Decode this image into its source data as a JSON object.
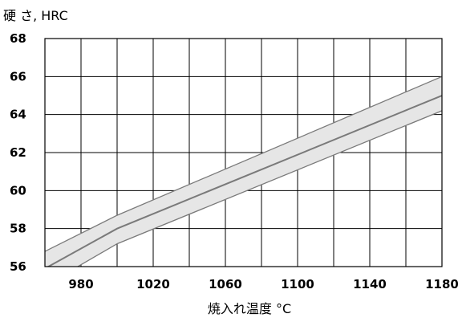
{
  "chart_data": {
    "type": "area",
    "title": "",
    "ylabel": "硬 さ, HRC",
    "xlabel": "焼入れ温度 °C",
    "xlim": [
      960,
      1180
    ],
    "ylim": [
      56,
      68
    ],
    "x_ticks": [
      980,
      1020,
      1060,
      1100,
      1140,
      1180
    ],
    "y_ticks": [
      56,
      58,
      60,
      62,
      64,
      66,
      68
    ],
    "x_tick_labels": [
      "980",
      "1020",
      "1060",
      "1100",
      "1140",
      "1180"
    ],
    "y_tick_labels": [
      "56",
      "58",
      "60",
      "62",
      "64",
      "66",
      "68"
    ],
    "grid": true,
    "series": [
      {
        "role": "upper",
        "x": [
          960,
          1000,
          1180
        ],
        "values": [
          56.8,
          58.7,
          66.0
        ]
      },
      {
        "role": "center",
        "x": [
          960,
          1000,
          1180
        ],
        "values": [
          55.9,
          58.0,
          65.0
        ]
      },
      {
        "role": "lower",
        "x": [
          960,
          1000,
          1180
        ],
        "values": [
          55.0,
          57.2,
          64.2
        ]
      }
    ],
    "colors": {
      "band_fill": "#e6e6e6",
      "line": "#7a7a7a",
      "grid": "#000000"
    }
  }
}
